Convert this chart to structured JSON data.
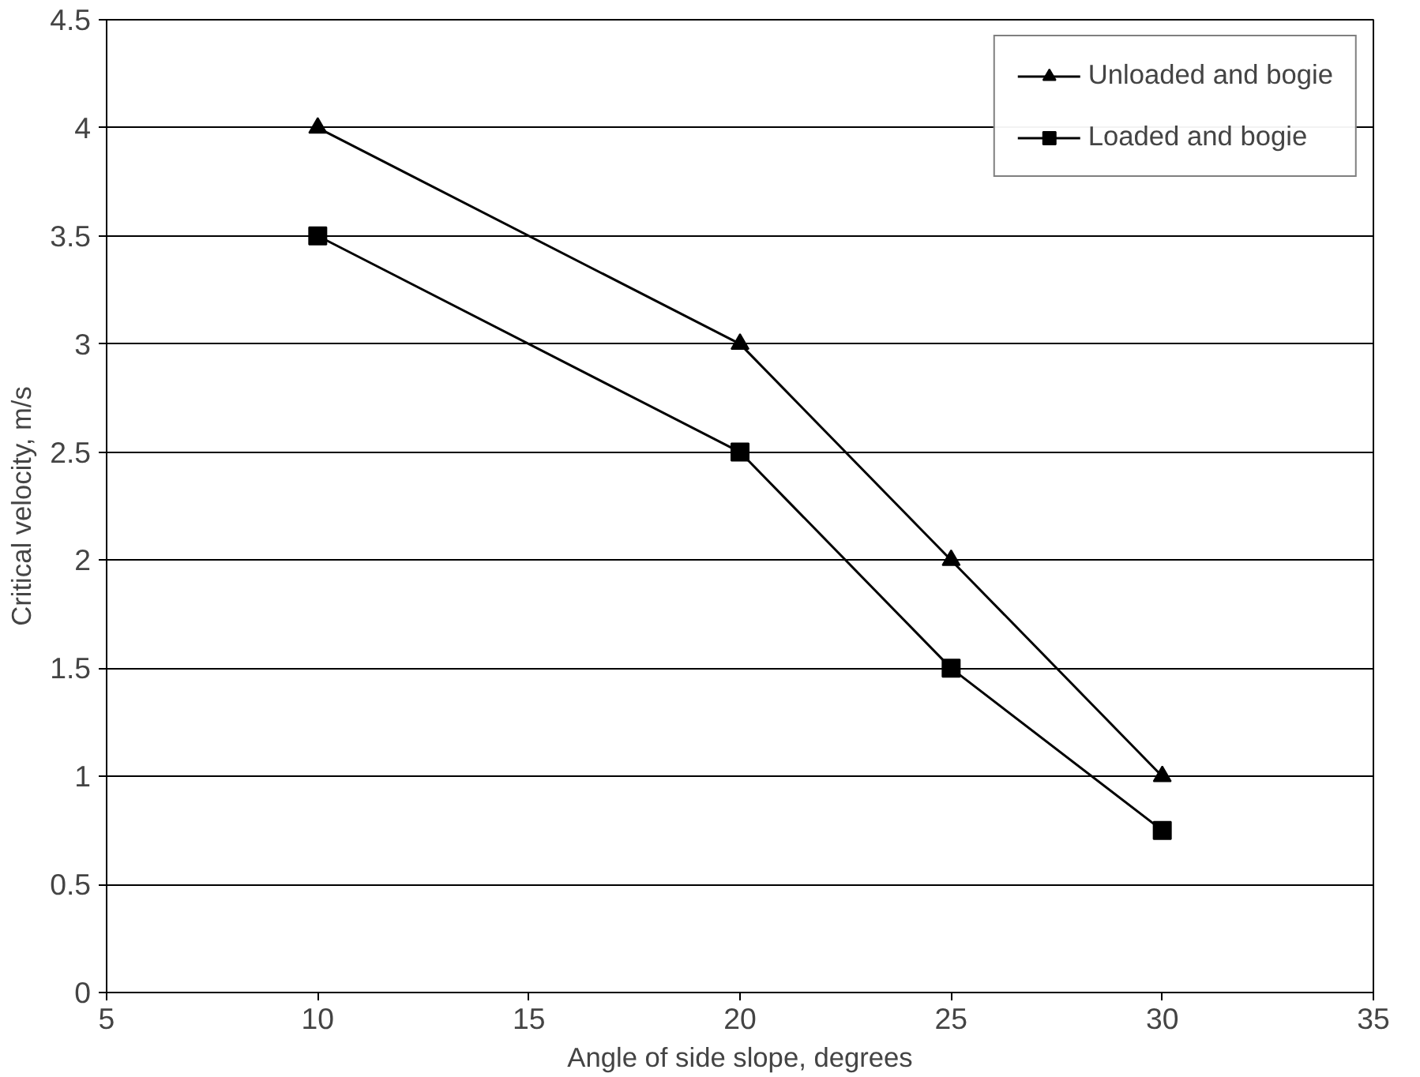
{
  "chart_data": {
    "type": "line",
    "xlabel": "Angle of side slope, degrees",
    "ylabel": "Critical velocity, m/s",
    "x": [
      10,
      20,
      25,
      30
    ],
    "series": [
      {
        "name": "Unloaded and bogie",
        "color": "#000000",
        "values": [
          4,
          3,
          2,
          1
        ],
        "marker": "triangle"
      },
      {
        "name": "Loaded and bogie",
        "color": "#000000",
        "values": [
          3.5,
          2.5,
          1.5,
          0.75
        ],
        "marker": "square"
      }
    ],
    "xlim": [
      5,
      35
    ],
    "xticks": [
      5,
      10,
      15,
      20,
      25,
      30,
      35
    ],
    "ylim": [
      0,
      4.5
    ],
    "yticks": [
      0,
      0.5,
      1,
      1.5,
      2,
      2.5,
      3,
      3.5,
      4,
      4.5
    ],
    "grid": "y",
    "legend": "top right",
    "line_style": "solid"
  }
}
